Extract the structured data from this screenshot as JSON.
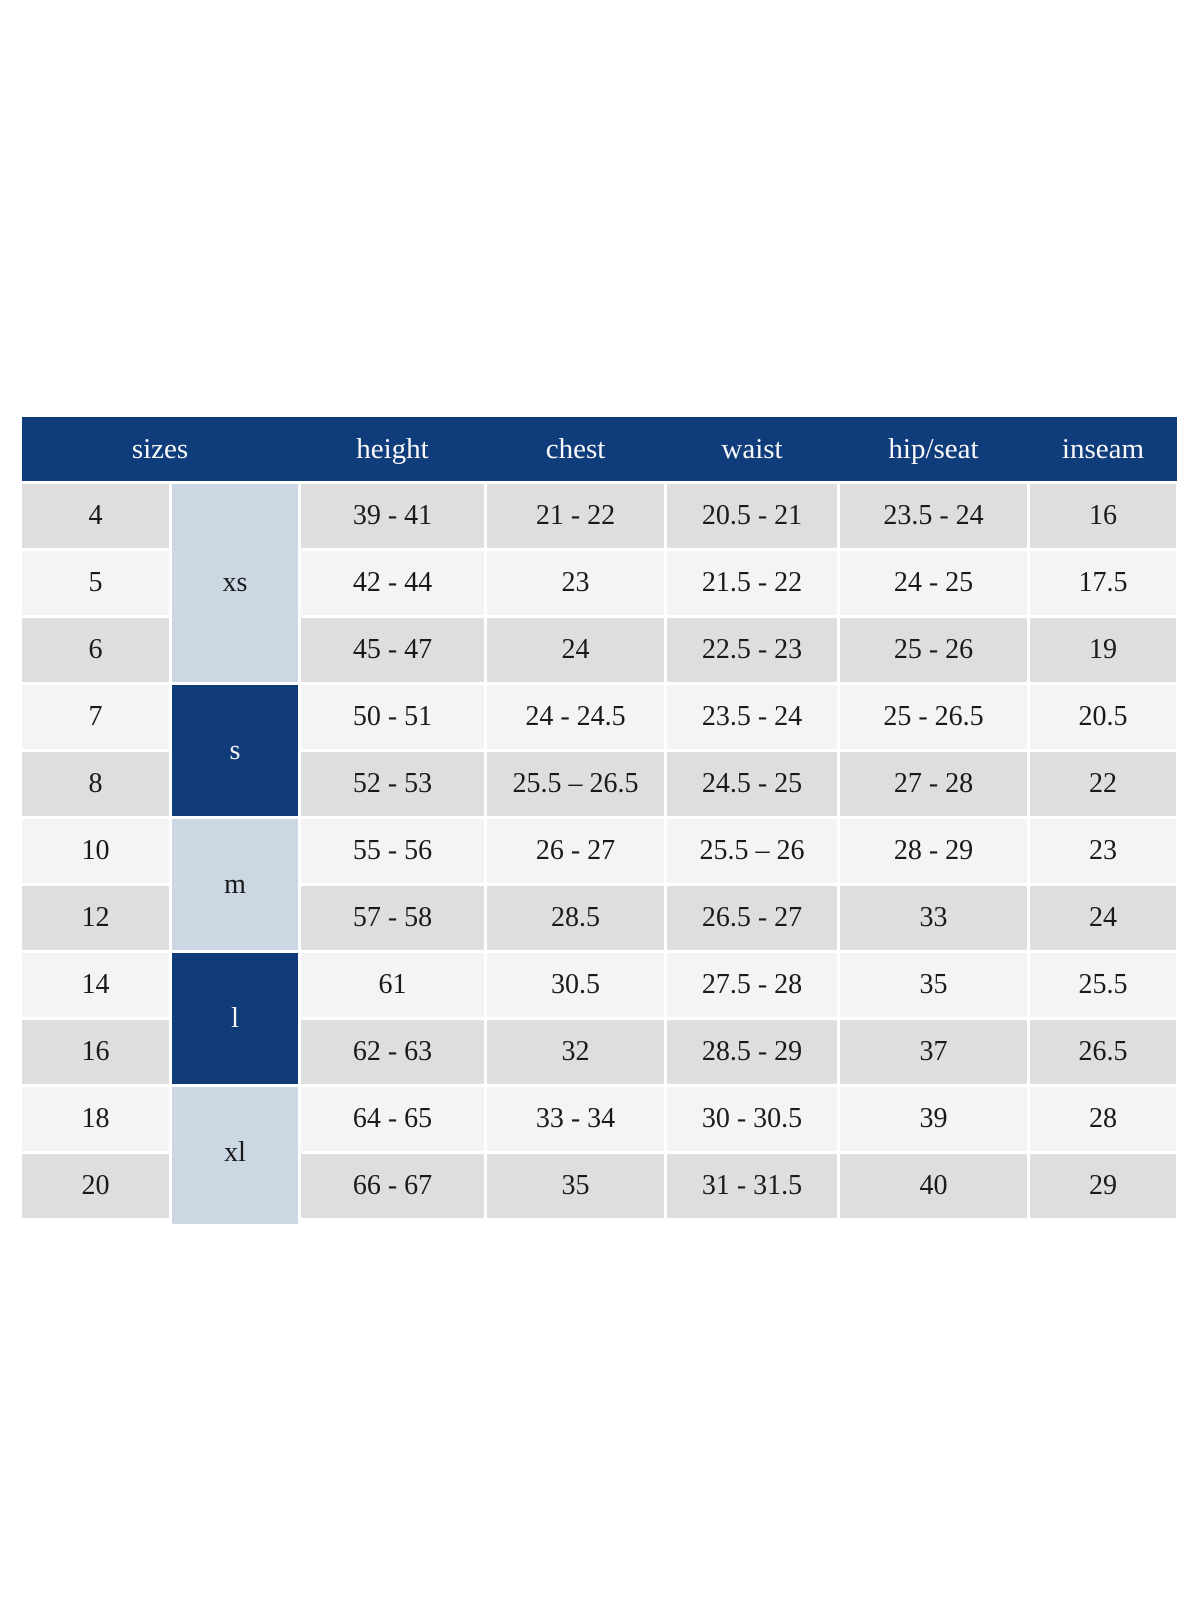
{
  "colors": {
    "header_bg": "#0f3c7b",
    "group_dark_bg": "#0f3b78",
    "group_light_bg": "#ccd7e4",
    "row_gray_bg": "#dedede",
    "row_light_bg": "#f4f4f4",
    "header_text": "#f8f8f8",
    "body_text": "#1a1a1a",
    "page_bg": "#ffffff"
  },
  "header": {
    "sizes": "sizes",
    "height": "height",
    "chest": "chest",
    "waist": "waist",
    "hip_seat": "hip/seat",
    "inseam": "inseam"
  },
  "groups": {
    "xs": "xs",
    "s": "s",
    "m": "m",
    "l": "l",
    "xl": "xl"
  },
  "rows": [
    {
      "size": "4",
      "height": "39 - 41",
      "chest": "21 - 22",
      "waist": "20.5 - 21",
      "hip_seat": "23.5 - 24",
      "inseam": "16"
    },
    {
      "size": "5",
      "height": "42 - 44",
      "chest": "23",
      "waist": "21.5 - 22",
      "hip_seat": "24 - 25",
      "inseam": "17.5"
    },
    {
      "size": "6",
      "height": "45 - 47",
      "chest": "24",
      "waist": "22.5 - 23",
      "hip_seat": "25 - 26",
      "inseam": "19"
    },
    {
      "size": "7",
      "height": "50 - 51",
      "chest": "24 - 24.5",
      "waist": "23.5 - 24",
      "hip_seat": "25 - 26.5",
      "inseam": "20.5"
    },
    {
      "size": "8",
      "height": "52 - 53",
      "chest": "25.5 – 26.5",
      "waist": "24.5 - 25",
      "hip_seat": "27 - 28",
      "inseam": "22"
    },
    {
      "size": "10",
      "height": "55 - 56",
      "chest": "26 - 27",
      "waist": "25.5 – 26",
      "hip_seat": "28 - 29",
      "inseam": "23"
    },
    {
      "size": "12",
      "height": "57 - 58",
      "chest": "28.5",
      "waist": "26.5 - 27",
      "hip_seat": "33",
      "inseam": "24"
    },
    {
      "size": "14",
      "height": "61",
      "chest": "30.5",
      "waist": "27.5 - 28",
      "hip_seat": "35",
      "inseam": "25.5"
    },
    {
      "size": "16",
      "height": "62 - 63",
      "chest": "32",
      "waist": "28.5 - 29",
      "hip_seat": "37",
      "inseam": "26.5"
    },
    {
      "size": "18",
      "height": "64 - 65",
      "chest": "33 - 34",
      "waist": "30 - 30.5",
      "hip_seat": "39",
      "inseam": "28"
    },
    {
      "size": "20",
      "height": "66 - 67",
      "chest": "35",
      "waist": "31 - 31.5",
      "hip_seat": "40",
      "inseam": "29"
    }
  ]
}
